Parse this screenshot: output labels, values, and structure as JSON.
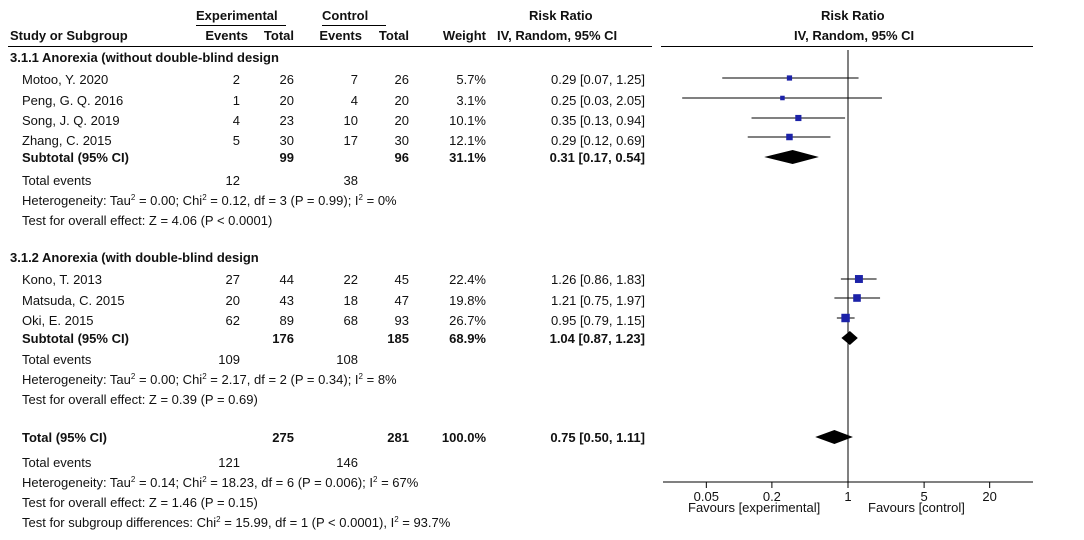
{
  "header": {
    "experimental": "Experimental",
    "control": "Control",
    "risk_ratio": "Risk Ratio",
    "risk_ratio_plot": "Risk Ratio",
    "study_or_subgroup": "Study or Subgroup",
    "events": "Events",
    "total": "Total",
    "events2": "Events",
    "total2": "Total",
    "weight": "Weight",
    "method": "IV, Random, 95% CI",
    "method_plot": "IV, Random, 95% CI"
  },
  "groups": [
    {
      "title": "3.1.1 Anorexia (without double-blind design",
      "studies": [
        {
          "name": "Motoo, Y. 2020",
          "exp_events": "2",
          "exp_total": "26",
          "ctl_events": "7",
          "ctl_total": "26",
          "weight": "5.7%",
          "ci": "0.29 [0.07, 1.25]"
        },
        {
          "name": "Peng, G. Q. 2016",
          "exp_events": "1",
          "exp_total": "20",
          "ctl_events": "4",
          "ctl_total": "20",
          "weight": "3.1%",
          "ci": "0.25 [0.03, 2.05]"
        },
        {
          "name": "Song, J. Q. 2019",
          "exp_events": "4",
          "exp_total": "23",
          "ctl_events": "10",
          "ctl_total": "20",
          "weight": "10.1%",
          "ci": "0.35 [0.13, 0.94]"
        },
        {
          "name": "Zhang, C. 2015",
          "exp_events": "5",
          "exp_total": "30",
          "ctl_events": "17",
          "ctl_total": "30",
          "weight": "12.1%",
          "ci": "0.29 [0.12, 0.69]"
        }
      ],
      "subtotal": {
        "label": "Subtotal (95% CI)",
        "exp_total": "99",
        "ctl_total": "96",
        "weight": "31.1%",
        "ci": "0.31 [0.17, 0.54]"
      },
      "total_events": {
        "label": "Total events",
        "exp": "12",
        "ctl": "38"
      },
      "heterogeneity": {
        "a": "Heterogeneity: Tau",
        "b": " = 0.00; Chi",
        "c": " = 0.12, df = 3 (P = 0.99); I",
        "d": " = 0%"
      },
      "overall": "Test for overall effect: Z = 4.06 (P < 0.0001)"
    },
    {
      "title": "3.1.2 Anorexia (with double-blind design",
      "studies": [
        {
          "name": "Kono, T. 2013",
          "exp_events": "27",
          "exp_total": "44",
          "ctl_events": "22",
          "ctl_total": "45",
          "weight": "22.4%",
          "ci": "1.26 [0.86, 1.83]"
        },
        {
          "name": "Matsuda, C. 2015",
          "exp_events": "20",
          "exp_total": "43",
          "ctl_events": "18",
          "ctl_total": "47",
          "weight": "19.8%",
          "ci": "1.21 [0.75, 1.97]"
        },
        {
          "name": "Oki, E. 2015",
          "exp_events": "62",
          "exp_total": "89",
          "ctl_events": "68",
          "ctl_total": "93",
          "weight": "26.7%",
          "ci": "0.95 [0.79, 1.15]"
        }
      ],
      "subtotal": {
        "label": "Subtotal (95% CI)",
        "exp_total": "176",
        "ctl_total": "185",
        "weight": "68.9%",
        "ci": "1.04 [0.87, 1.23]"
      },
      "total_events": {
        "label": "Total events",
        "exp": "109",
        "ctl": "108"
      },
      "heterogeneity": {
        "a": "Heterogeneity: Tau",
        "b": " = 0.00; Chi",
        "c": " = 2.17, df = 2 (P = 0.34); I",
        "d": " = 8%"
      },
      "overall": "Test for overall effect: Z = 0.39 (P = 0.69)"
    }
  ],
  "total": {
    "label": "Total (95% CI)",
    "exp_total": "275",
    "ctl_total": "281",
    "weight": "100.0%",
    "ci": "0.75 [0.50, 1.11]",
    "total_events": {
      "label": "Total events",
      "exp": "121",
      "ctl": "146"
    },
    "heterogeneity": {
      "a": "Heterogeneity: Tau",
      "b": " = 0.14; Chi",
      "c": " = 18.23, df = 6 (P = 0.006); I",
      "d": " = 67%"
    },
    "overall": "Test for overall effect: Z = 1.46 (P = 0.15)",
    "subgroup": {
      "a": "Test for subgroup differences: Chi",
      "b": " = 15.99, df = 1 (P < 0.0001), I",
      "c": " = 93.7%"
    }
  },
  "sup2": "2",
  "axis": {
    "ticks": [
      {
        "label": "0.05",
        "value": 0.05
      },
      {
        "label": "0.2",
        "value": 0.2
      },
      {
        "label": "1",
        "value": 1
      },
      {
        "label": "5",
        "value": 5
      },
      {
        "label": "20",
        "value": 20
      }
    ],
    "favours_left": "Favours [experimental]",
    "favours_right": "Favours [control]"
  },
  "colors": {
    "square": "#1c22a8",
    "diamond": "#000000",
    "line": "#000000"
  },
  "chart_data": {
    "type": "forest",
    "title": "Risk Ratio",
    "subtitle": "IV, Random, 95% CI",
    "xscale": "log",
    "xlim": [
      0.02,
      50
    ],
    "xlabel_left": "Favours [experimental]",
    "xlabel_right": "Favours [control]",
    "studies": [
      {
        "name": "Motoo, Y. 2020",
        "rr": 0.29,
        "lo": 0.07,
        "hi": 1.25,
        "weight": 5.7
      },
      {
        "name": "Peng, G. Q. 2016",
        "rr": 0.25,
        "lo": 0.03,
        "hi": 2.05,
        "weight": 3.1
      },
      {
        "name": "Song, J. Q. 2019",
        "rr": 0.35,
        "lo": 0.13,
        "hi": 0.94,
        "weight": 10.1
      },
      {
        "name": "Zhang, C. 2015",
        "rr": 0.29,
        "lo": 0.12,
        "hi": 0.69,
        "weight": 12.1
      },
      {
        "name": "Kono, T. 2013",
        "rr": 1.26,
        "lo": 0.86,
        "hi": 1.83,
        "weight": 22.4
      },
      {
        "name": "Matsuda, C. 2015",
        "rr": 1.21,
        "lo": 0.75,
        "hi": 1.97,
        "weight": 19.8
      },
      {
        "name": "Oki, E. 2015",
        "rr": 0.95,
        "lo": 0.79,
        "hi": 1.15,
        "weight": 26.7
      }
    ],
    "summaries": [
      {
        "name": "Subtotal 3.1.1",
        "rr": 0.31,
        "lo": 0.17,
        "hi": 0.54
      },
      {
        "name": "Subtotal 3.1.2",
        "rr": 1.04,
        "lo": 0.87,
        "hi": 1.23
      },
      {
        "name": "Total",
        "rr": 0.75,
        "lo": 0.5,
        "hi": 1.11
      }
    ]
  }
}
